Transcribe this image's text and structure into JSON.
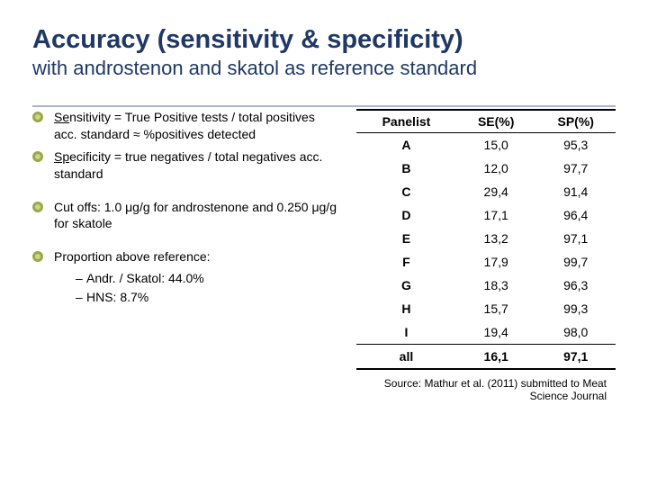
{
  "title": "Accuracy (sensitivity & specificity)",
  "subtitle": "with androstenon and skatol as reference standard",
  "bullets": {
    "group1": [
      {
        "prefix": "Se",
        "rest": "nsitivity = True Positive tests / total positives acc. standard ≈ %positives detected"
      },
      {
        "prefix": "Sp",
        "rest": "ecificity = true negatives / total negatives acc. standard"
      }
    ],
    "group2": [
      {
        "text": "Cut offs: 1.0 μg/g for androstenone and 0.250 μg/g for skatole"
      }
    ],
    "group3_label": "Proportion above reference:",
    "group3_items": [
      "Andr. / Skatol: 44.0%",
      "HNS:  8.7%"
    ]
  },
  "table": {
    "columns": [
      "Panelist",
      "SE(%)",
      "SP(%)"
    ],
    "rows": [
      [
        "A",
        "15,0",
        "95,3"
      ],
      [
        "B",
        "12,0",
        "97,7"
      ],
      [
        "C",
        "29,4",
        "91,4"
      ],
      [
        "D",
        "17,1",
        "96,4"
      ],
      [
        "E",
        "13,2",
        "97,1"
      ],
      [
        "F",
        "17,9",
        "99,7"
      ],
      [
        "G",
        "18,3",
        "96,3"
      ],
      [
        "H",
        "15,7",
        "99,3"
      ],
      [
        "I",
        "19,4",
        "98,0"
      ]
    ],
    "all_row": [
      "all",
      "16,1",
      "97,1"
    ]
  },
  "source": "Source: Mathur et al. (2011) submitted to Meat Science Journal"
}
